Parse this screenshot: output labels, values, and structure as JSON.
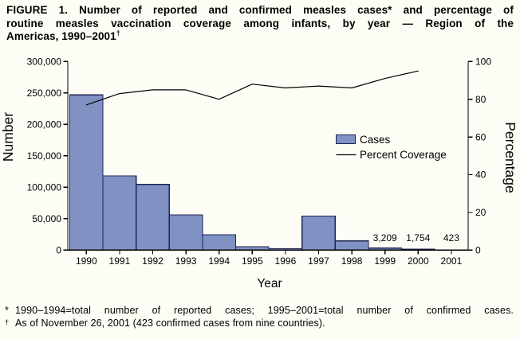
{
  "figure": {
    "title_lines": [
      "FIGURE 1. Number of reported and confirmed measles cases* and percentage of",
      "routine measles vaccination coverage among infants, by year — Region of the",
      "Americas, 1990–2001"
    ],
    "title_superscript": "†",
    "footnotes": [
      {
        "marker": "*",
        "text": "1990–1994=total number of reported cases; 1995–2001=total number of confirmed cases."
      },
      {
        "marker": "†",
        "text": "As of November 26, 2001 (423 confirmed cases from nine countries)."
      }
    ]
  },
  "chart_data": {
    "type": "bar+line",
    "title": "Number of reported and confirmed measles cases and percentage of routine measles vaccination coverage among infants, by year — Region of the Americas, 1990–2001",
    "x_axis": {
      "label": "Year",
      "categories": [
        "1990",
        "1991",
        "1992",
        "1993",
        "1994",
        "1995",
        "1996",
        "1997",
        "1998",
        "1999",
        "2000",
        "2001"
      ]
    },
    "left_axis": {
      "label": "Number",
      "min": 0,
      "max": 300000,
      "step": 50000,
      "tick_labels": [
        "0",
        "50,000",
        "100,000",
        "150,000",
        "200,000",
        "250,000",
        "300,000"
      ]
    },
    "right_axis": {
      "label": "Percentage",
      "min": 0,
      "max": 100,
      "step": 20,
      "tick_labels": [
        "0",
        "20",
        "40",
        "60",
        "80",
        "100"
      ]
    },
    "series": [
      {
        "name": "Cases",
        "type": "bar",
        "axis": "left",
        "values": [
          247000,
          118000,
          104500,
          56000,
          24500,
          5500,
          2100,
          54000,
          14500,
          3209,
          1754,
          423
        ],
        "point_labels": [
          null,
          null,
          null,
          null,
          null,
          null,
          null,
          null,
          null,
          "3,209",
          "1,754",
          "423"
        ]
      },
      {
        "name": "Percent Coverage",
        "type": "line",
        "axis": "right",
        "values": [
          77,
          83,
          85,
          85,
          80,
          88,
          86,
          87,
          86,
          91,
          95,
          null
        ]
      }
    ],
    "legend": {
      "position": "inside-right",
      "entries": [
        {
          "label": "Cases",
          "swatch": "box"
        },
        {
          "label": "Percent Coverage",
          "swatch": "line"
        }
      ]
    },
    "grid": false,
    "colors": {
      "bar_fill": "#8091c3",
      "bar_border": "#1e2554",
      "line": "#000000",
      "axis": "#000000",
      "background": "#fdfdf6",
      "text": "#000000"
    }
  }
}
